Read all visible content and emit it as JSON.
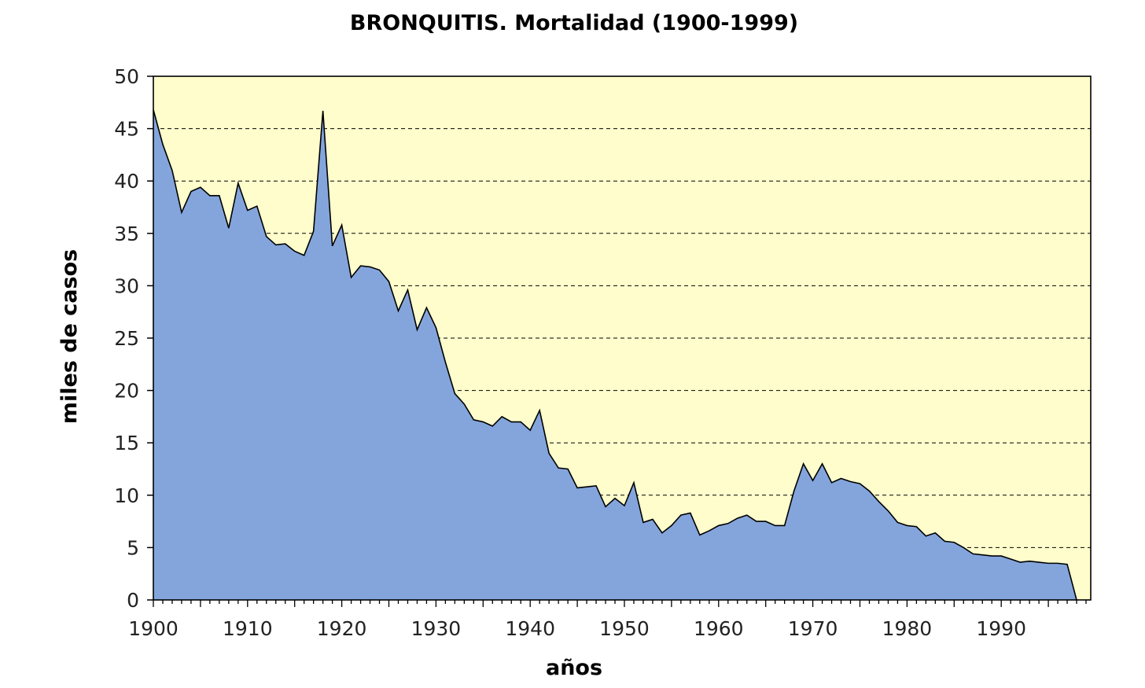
{
  "chart_data": {
    "type": "area",
    "title": "BRONQUITIS. Mortalidad (1900-1999)",
    "xlabel": "años",
    "ylabel": "miles de casos",
    "xlim": [
      1900,
      1999
    ],
    "ylim": [
      0,
      50
    ],
    "x_ticks": [
      "1900",
      "1910",
      "1920",
      "1930",
      "1940",
      "1950",
      "1960",
      "1970",
      "1980",
      "1990"
    ],
    "y_ticks": [
      "0",
      "5",
      "10",
      "15",
      "20",
      "25",
      "30",
      "35",
      "40",
      "45",
      "50"
    ],
    "grid": "horizontal-dashed",
    "colors": {
      "plot_background": "#FFFDCC",
      "area_fill": "#84A5DC",
      "line": "#000000"
    },
    "series": [
      {
        "x": [
          1900,
          1901,
          1902,
          1903,
          1904,
          1905,
          1906,
          1907,
          1908,
          1909,
          1910,
          1911,
          1912,
          1913,
          1914,
          1915,
          1916,
          1917,
          1918,
          1919,
          1920,
          1921,
          1922,
          1923,
          1924,
          1925,
          1926,
          1927,
          1928,
          1929,
          1930,
          1931,
          1932,
          1933,
          1934,
          1935,
          1936,
          1937,
          1938,
          1939,
          1940,
          1941,
          1942,
          1943,
          1944,
          1945,
          1946,
          1947,
          1948,
          1949,
          1950,
          1951,
          1952,
          1953,
          1954,
          1955,
          1956,
          1957,
          1958,
          1959,
          1960,
          1961,
          1962,
          1963,
          1964,
          1965,
          1966,
          1967,
          1968,
          1969,
          1970,
          1971,
          1972,
          1973,
          1974,
          1975,
          1976,
          1977,
          1978,
          1979,
          1980,
          1981,
          1982,
          1983,
          1984,
          1985,
          1986,
          1987,
          1988,
          1989,
          1990,
          1991,
          1992,
          1993,
          1994,
          1995,
          1996,
          1997,
          1998
        ],
        "values": [
          46.8,
          43.5,
          41.0,
          37.0,
          39.0,
          39.4,
          38.6,
          38.6,
          35.5,
          39.8,
          37.2,
          37.6,
          34.7,
          33.9,
          34.0,
          33.3,
          32.9,
          35.2,
          46.7,
          33.8,
          35.8,
          30.8,
          31.9,
          31.8,
          31.5,
          30.4,
          27.6,
          29.6,
          25.8,
          27.9,
          26.0,
          22.7,
          19.7,
          18.7,
          17.2,
          17.0,
          16.6,
          17.5,
          17.0,
          17.0,
          16.2,
          18.1,
          14.0,
          12.6,
          12.5,
          10.7,
          10.8,
          10.9,
          8.9,
          9.7,
          9.0,
          11.2,
          7.4,
          7.7,
          6.4,
          7.1,
          8.1,
          8.3,
          6.2,
          6.6,
          7.1,
          7.3,
          7.8,
          8.1,
          7.5,
          7.5,
          7.1,
          7.1,
          10.4,
          13.0,
          11.4,
          13.0,
          11.2,
          11.6,
          11.3,
          11.1,
          10.4,
          9.4,
          8.5,
          7.4,
          7.1,
          7.0,
          6.1,
          6.4,
          5.6,
          5.5,
          5.0,
          4.4,
          4.3,
          4.2,
          4.2,
          3.9,
          3.6,
          3.7,
          3.6,
          3.5,
          3.5,
          3.4,
          0
        ]
      }
    ]
  }
}
